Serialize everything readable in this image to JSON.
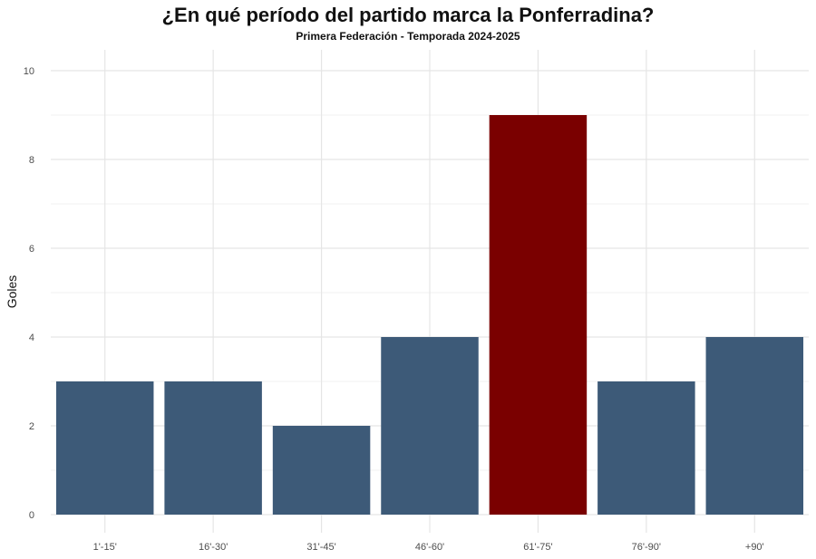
{
  "chart_data": {
    "type": "bar",
    "title": "¿En qué período del partido marca la Ponferradina?",
    "subtitle": "Primera Federación - Temporada 2024-2025",
    "xlabel": "",
    "ylabel": "Goles",
    "categories": [
      "1'-15'",
      "16'-30'",
      "31'-45'",
      "46'-60'",
      "61'-75'",
      "76'-90'",
      "+90'"
    ],
    "values": [
      3,
      3,
      2,
      4,
      9,
      3,
      4
    ],
    "highlight_index": 4,
    "ylim": [
      0,
      10
    ],
    "yticks": [
      0,
      2,
      4,
      6,
      8,
      10
    ],
    "grid": true,
    "colors": {
      "bar": "#3d5a78",
      "highlight": "#7a0000",
      "grid_major": "#e5e5e5",
      "grid_minor": "#f2f2f2"
    }
  }
}
